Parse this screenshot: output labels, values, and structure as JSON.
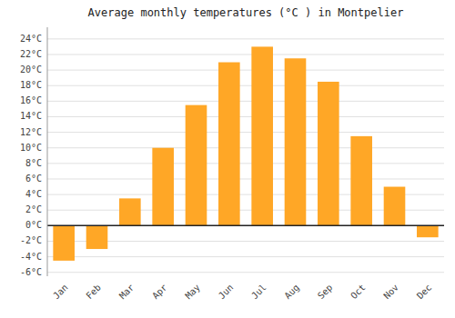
{
  "chart_data": {
    "type": "bar",
    "title": "Average monthly temperatures (°C ) in Montpelier",
    "categories": [
      "Jan",
      "Feb",
      "Mar",
      "Apr",
      "May",
      "Jun",
      "Jul",
      "Aug",
      "Sep",
      "Oct",
      "Nov",
      "Dec"
    ],
    "values": [
      -4.5,
      -3.0,
      3.5,
      10.0,
      15.5,
      21.0,
      23.0,
      21.5,
      18.5,
      11.5,
      5.0,
      -1.5
    ],
    "color": "#FFA726",
    "ylim": [
      -6.5,
      25.5
    ],
    "yticks": [
      {
        "value": -6,
        "label": "-6°C"
      },
      {
        "value": -4,
        "label": "-4°C"
      },
      {
        "value": -2,
        "label": "-2°C"
      },
      {
        "value": 0,
        "label": "0°C"
      },
      {
        "value": 2,
        "label": "2°C"
      },
      {
        "value": 4,
        "label": "4°C"
      },
      {
        "value": 6,
        "label": "6°C"
      },
      {
        "value": 8,
        "label": "8°C"
      },
      {
        "value": 10,
        "label": "10°C"
      },
      {
        "value": 12,
        "label": "12°C"
      },
      {
        "value": 14,
        "label": "14°C"
      },
      {
        "value": 16,
        "label": "16°C"
      },
      {
        "value": 18,
        "label": "18°C"
      },
      {
        "value": 20,
        "label": "20°C"
      },
      {
        "value": 22,
        "label": "22°C"
      },
      {
        "value": 24,
        "label": "24°C"
      }
    ],
    "grid": true
  }
}
